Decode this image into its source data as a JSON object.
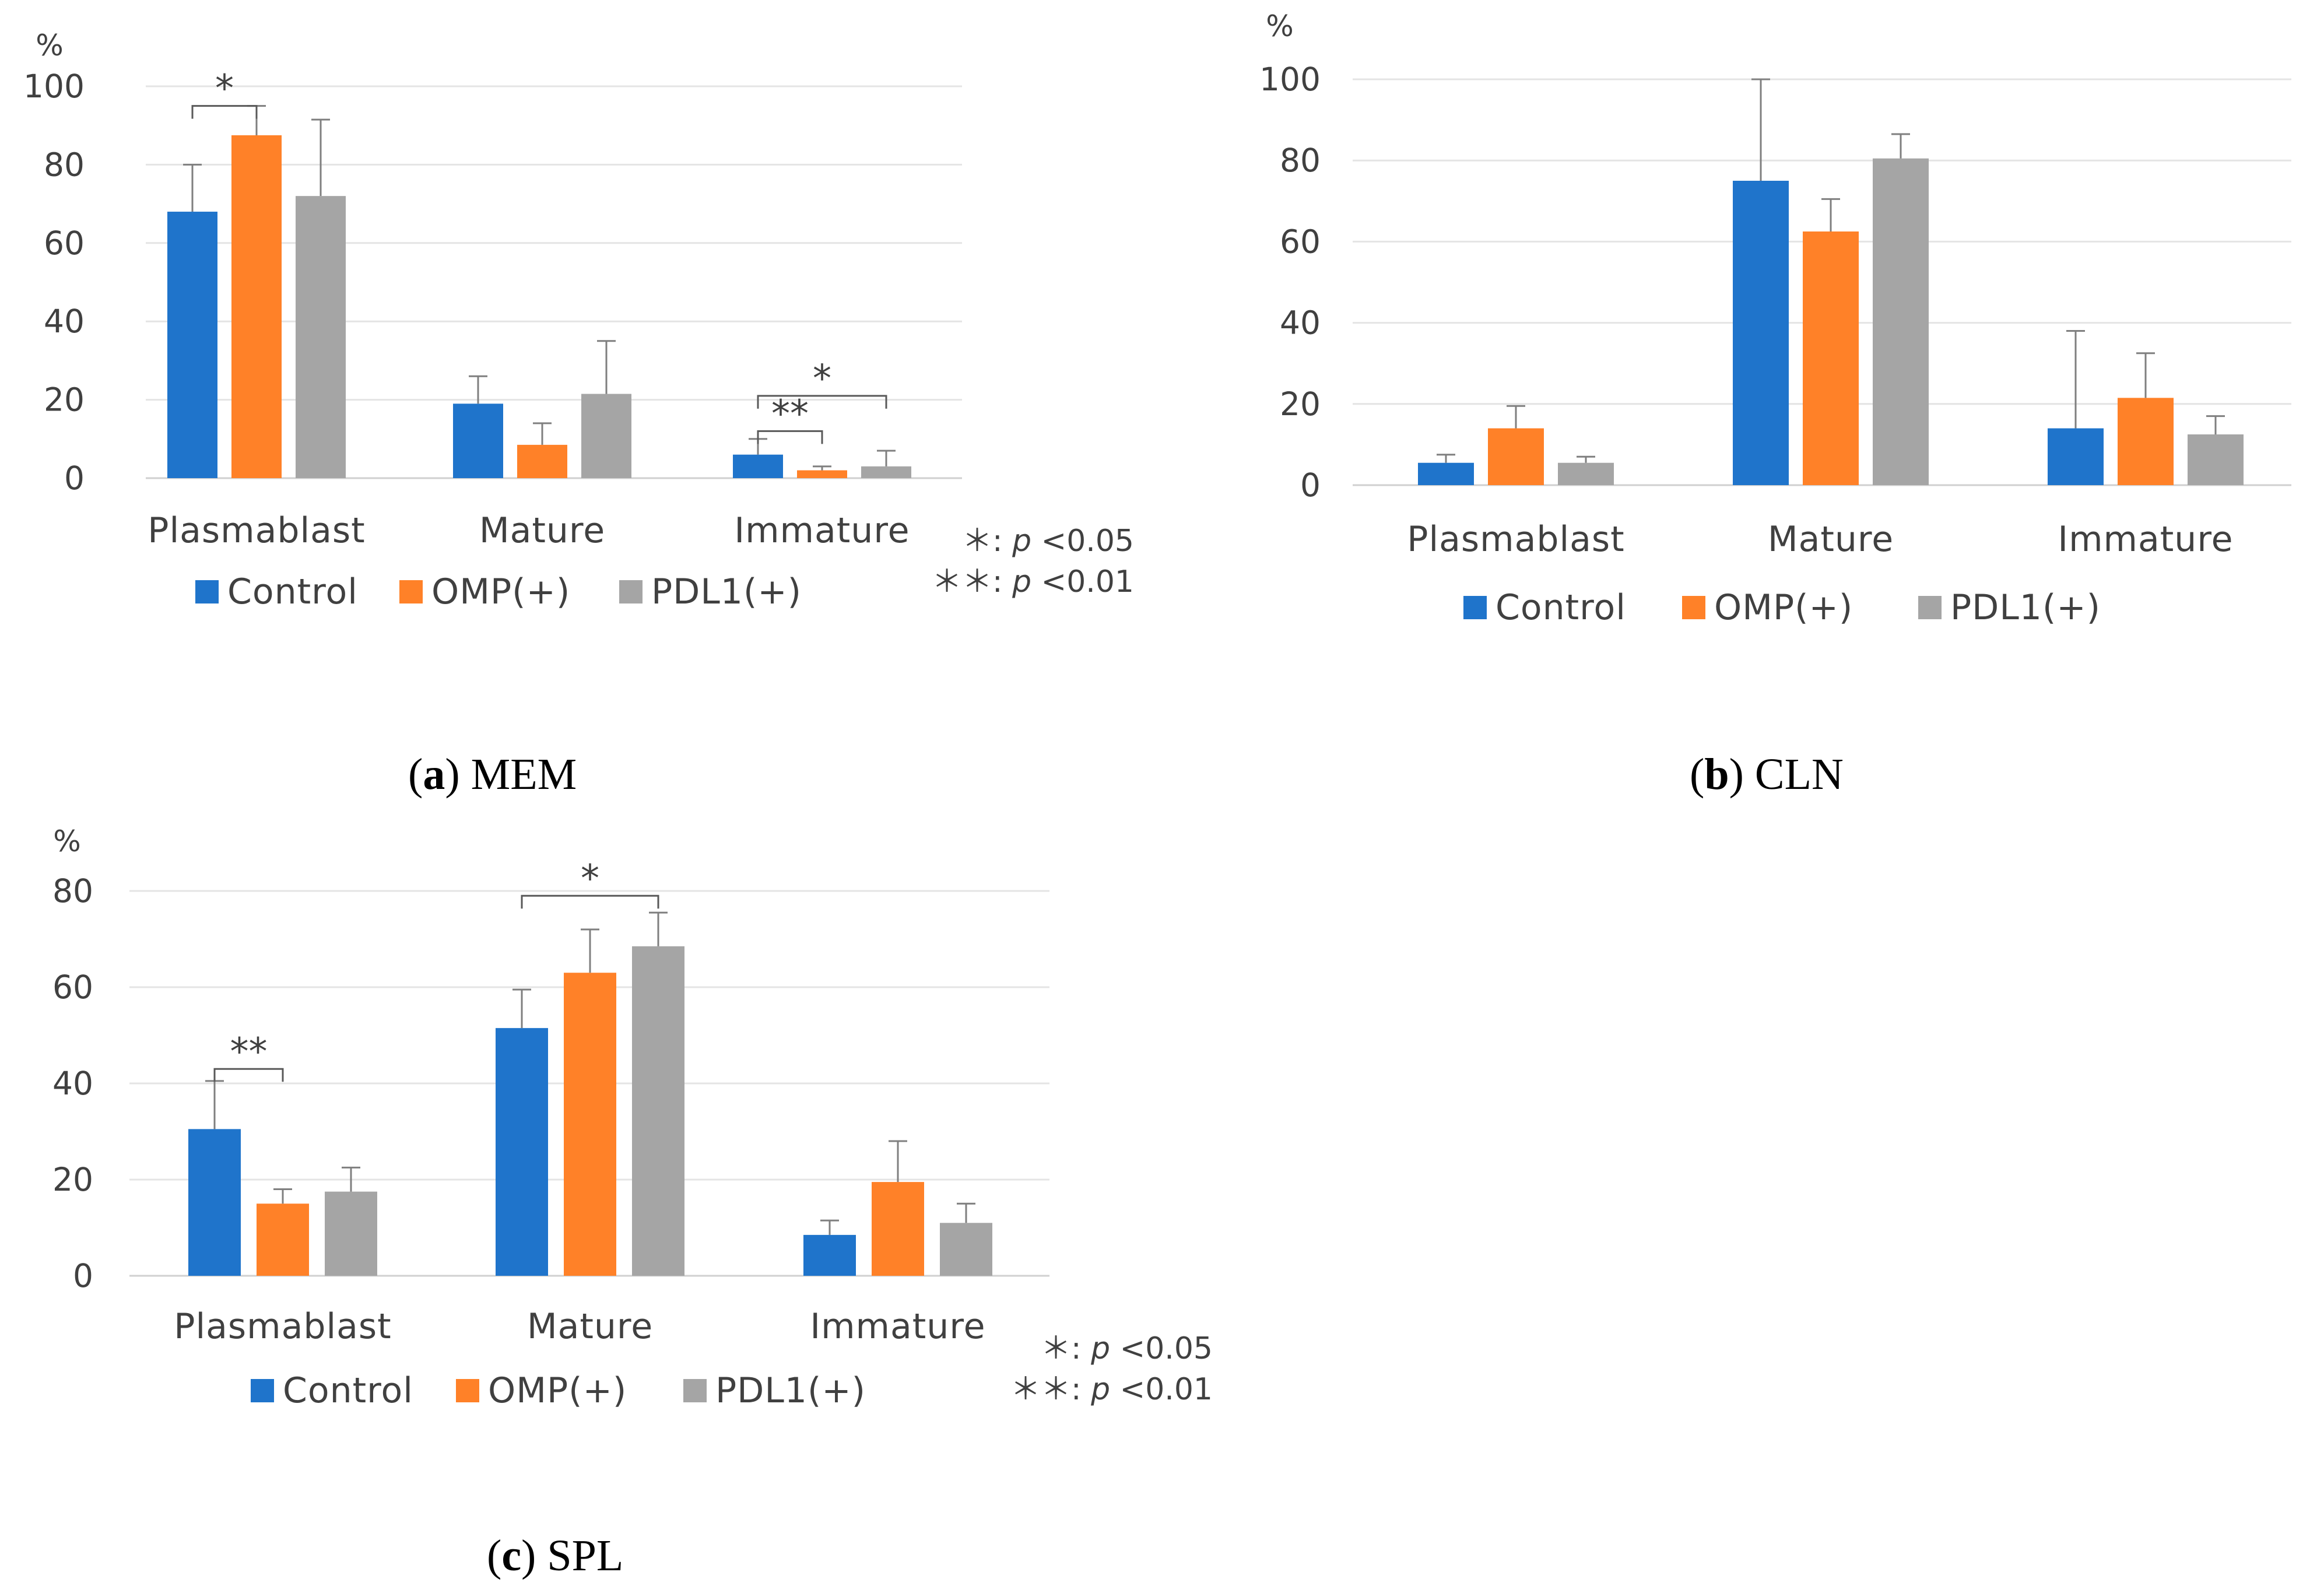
{
  "chart_data": [
    {
      "id": "a",
      "type": "bar",
      "caption_letter": "a",
      "caption_text": "MEM",
      "y_unit": "%",
      "ylim": [
        0,
        100
      ],
      "yticks": [
        "0",
        "20",
        "40",
        "60",
        "80",
        "100"
      ],
      "categories": [
        "Plasmablast",
        "Mature",
        "Immature"
      ],
      "series": [
        {
          "name": "Control",
          "color": "#1F74CB",
          "values": [
            68,
            19,
            6
          ],
          "errors": [
            12,
            7,
            4
          ]
        },
        {
          "name": "OMP(+)",
          "color": "#FF8128",
          "values": [
            87.5,
            8.5,
            2
          ],
          "errors": [
            7.5,
            5.5,
            1
          ]
        },
        {
          "name": "PDL1(+)",
          "color": "#A5A5A5",
          "values": [
            72,
            21.5,
            3
          ],
          "errors": [
            19.5,
            13.5,
            4
          ]
        }
      ],
      "significance": [
        {
          "label": "*",
          "from_category": 0,
          "from_series": 0,
          "to_category": 0,
          "to_series": 1,
          "level": 95
        },
        {
          "label": "**",
          "from_category": 2,
          "from_series": 0,
          "to_category": 2,
          "to_series": 1,
          "level": 12
        },
        {
          "label": "*",
          "from_category": 2,
          "from_series": 0,
          "to_category": 2,
          "to_series": 2,
          "level": 21
        }
      ],
      "notes": [
        {
          "stars": "＊:",
          "p": "p",
          "rest": " <0.05"
        },
        {
          "stars": "＊＊:",
          "p": "p",
          "rest": " <0.01"
        }
      ]
    },
    {
      "id": "b",
      "type": "bar",
      "caption_letter": "b",
      "caption_text": "CLN",
      "y_unit": "%",
      "ylim": [
        0,
        100
      ],
      "yticks": [
        "0",
        "20",
        "40",
        "60",
        "80",
        "100"
      ],
      "categories": [
        "Plasmablast",
        "Mature",
        "Immature"
      ],
      "series": [
        {
          "name": "Control",
          "color": "#1F74CB",
          "values": [
            5.5,
            75,
            14
          ],
          "errors": [
            2,
            25,
            24
          ]
        },
        {
          "name": "OMP(+)",
          "color": "#FF8128",
          "values": [
            14,
            62.5,
            21.5
          ],
          "errors": [
            5.5,
            8,
            11
          ]
        },
        {
          "name": "PDL1(+)",
          "color": "#A5A5A5",
          "values": [
            5.5,
            80.5,
            12.5
          ],
          "errors": [
            1.5,
            6,
            4.5
          ]
        }
      ],
      "significance": [],
      "notes": []
    },
    {
      "id": "c",
      "type": "bar",
      "caption_letter": "c",
      "caption_text": "SPL",
      "y_unit": "%",
      "ylim": [
        0,
        80
      ],
      "yticks": [
        "0",
        "20",
        "40",
        "60",
        "80"
      ],
      "categories": [
        "Plasmablast",
        "Mature",
        "Immature"
      ],
      "series": [
        {
          "name": "Control",
          "color": "#1F74CB",
          "values": [
            30.5,
            51.5,
            8.5
          ],
          "errors": [
            10,
            8,
            3
          ]
        },
        {
          "name": "OMP(+)",
          "color": "#FF8128",
          "values": [
            15,
            63,
            19.5
          ],
          "errors": [
            3,
            9,
            8.5
          ]
        },
        {
          "name": "PDL1(+)",
          "color": "#A5A5A5",
          "values": [
            17.5,
            68.5,
            11
          ],
          "errors": [
            5,
            7,
            4
          ]
        }
      ],
      "significance": [
        {
          "label": "**",
          "from_category": 0,
          "from_series": 0,
          "to_category": 0,
          "to_series": 1,
          "level": 43
        },
        {
          "label": "*",
          "from_category": 1,
          "from_series": 0,
          "to_category": 1,
          "to_series": 2,
          "level": 79
        }
      ],
      "notes": [
        {
          "stars": "＊:",
          "p": "p",
          "rest": " <0.05"
        },
        {
          "stars": "＊＊:",
          "p": "p",
          "rest": " <0.01"
        }
      ]
    }
  ]
}
